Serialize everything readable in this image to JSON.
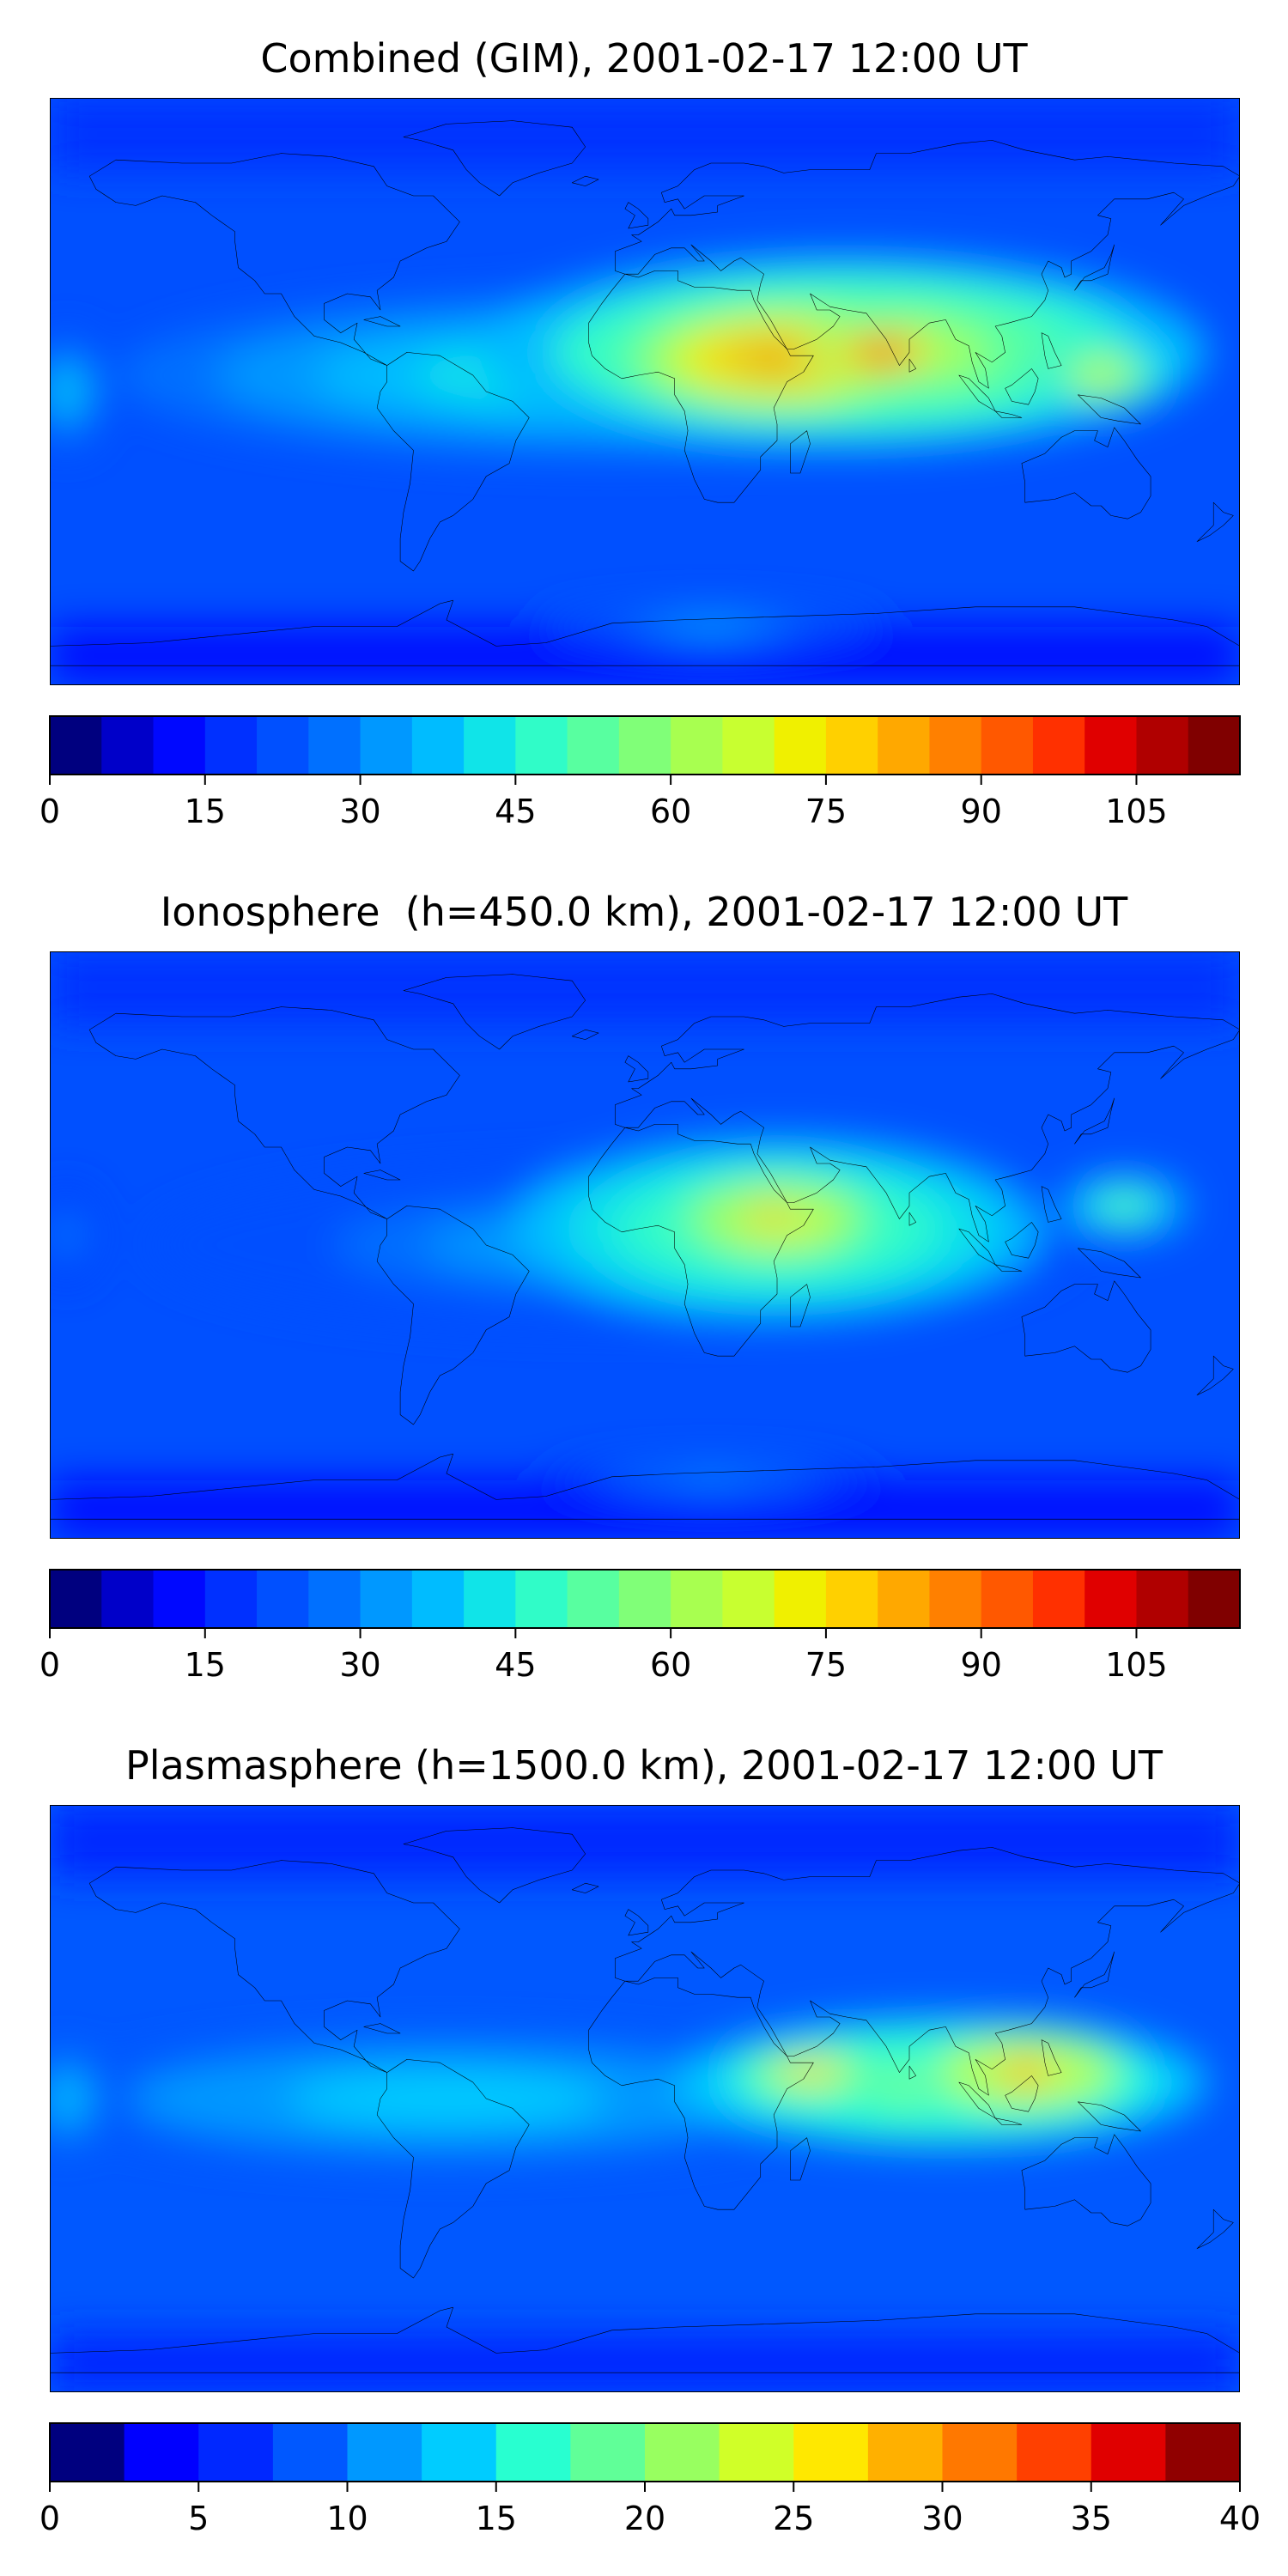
{
  "panels": [
    {
      "title": "Combined (GIM), 2001-02-17 12:00 UT",
      "colorbar": {
        "colors": [
          "#00007f",
          "#0000c9",
          "#0008ff",
          "#0030ff",
          "#0050ff",
          "#0070ff",
          "#0098ff",
          "#00bcff",
          "#10e4e8",
          "#30fcc8",
          "#58ffa0",
          "#80ff78",
          "#a8ff50",
          "#c8ff30",
          "#f0f000",
          "#ffd000",
          "#ffa800",
          "#ff8000",
          "#ff5800",
          "#ff3000",
          "#e00000",
          "#b00000",
          "#800000"
        ],
        "range": [
          0,
          115
        ],
        "ticks": [
          "0",
          "15",
          "30",
          "45",
          "60",
          "75",
          "90",
          "105"
        ]
      },
      "blobs": [
        {
          "lon": -10,
          "lat": 5,
          "rx": 150,
          "ry": 25,
          "level": 0.4
        },
        {
          "lon": 60,
          "lat": 12,
          "rx": 110,
          "ry": 30,
          "level": 0.6
        },
        {
          "lon": 40,
          "lat": 10,
          "rx": 50,
          "ry": 18,
          "level": 0.82
        },
        {
          "lon": 72,
          "lat": 12,
          "rx": 22,
          "ry": 9,
          "level": 0.9
        },
        {
          "lon": 38,
          "lat": 9,
          "rx": 12,
          "ry": 5,
          "level": 0.98
        },
        {
          "lon": 138,
          "lat": 5,
          "rx": 20,
          "ry": 10,
          "level": 0.62
        },
        {
          "lon": -175,
          "lat": 0,
          "rx": 12,
          "ry": 18,
          "level": 0.35
        },
        {
          "lon": 20,
          "lat": -72,
          "rx": 50,
          "ry": 6,
          "level": 0.3
        }
      ]
    },
    {
      "title": "Ionosphere  (h=450.0 km), 2001-02-17 12:00 UT",
      "colorbar": {
        "colors": [
          "#00007f",
          "#0000c9",
          "#0008ff",
          "#0030ff",
          "#0050ff",
          "#0070ff",
          "#0098ff",
          "#00bcff",
          "#10e4e8",
          "#30fcc8",
          "#58ffa0",
          "#80ff78",
          "#a8ff50",
          "#c8ff30",
          "#f0f000",
          "#ffd000",
          "#ffa800",
          "#ff8000",
          "#ff5800",
          "#ff3000",
          "#e00000",
          "#b00000",
          "#800000"
        ],
        "range": [
          0,
          115
        ],
        "ticks": [
          "0",
          "15",
          "30",
          "45",
          "60",
          "75",
          "90",
          "105"
        ]
      },
      "blobs": [
        {
          "lon": -10,
          "lat": 0,
          "rx": 140,
          "ry": 25,
          "level": 0.3
        },
        {
          "lon": 40,
          "lat": 5,
          "rx": 80,
          "ry": 28,
          "level": 0.55
        },
        {
          "lon": 40,
          "lat": 8,
          "rx": 35,
          "ry": 15,
          "level": 0.72
        },
        {
          "lon": 38,
          "lat": 10,
          "rx": 12,
          "ry": 5,
          "level": 0.82
        },
        {
          "lon": 145,
          "lat": 12,
          "rx": 20,
          "ry": 10,
          "level": 0.48
        },
        {
          "lon": -175,
          "lat": 3,
          "rx": 10,
          "ry": 15,
          "level": 0.25
        },
        {
          "lon": 20,
          "lat": -72,
          "rx": 50,
          "ry": 6,
          "level": 0.28
        }
      ]
    },
    {
      "title": "Plasmasphere (h=1500.0 km), 2001-02-17 12:00 UT",
      "colorbar": {
        "colors": [
          "#00007f",
          "#0000ff",
          "#0028ff",
          "#0058ff",
          "#0098ff",
          "#00ccff",
          "#28ffd0",
          "#60ff98",
          "#98ff60",
          "#d0ff28",
          "#ffe800",
          "#ffb000",
          "#ff7800",
          "#ff4000",
          "#e00000",
          "#900000"
        ],
        "range": [
          0,
          40
        ],
        "ticks": [
          "0",
          "5",
          "10",
          "15",
          "20",
          "25",
          "30",
          "35",
          "40"
        ]
      },
      "blobs": [
        {
          "lon": -60,
          "lat": 0,
          "rx": 120,
          "ry": 20,
          "level": 0.35
        },
        {
          "lon": 90,
          "lat": 5,
          "rx": 80,
          "ry": 20,
          "level": 0.55
        },
        {
          "lon": 50,
          "lat": 8,
          "rx": 25,
          "ry": 8,
          "level": 0.72
        },
        {
          "lon": 115,
          "lat": 8,
          "rx": 35,
          "ry": 14,
          "level": 0.75
        },
        {
          "lon": 115,
          "lat": 8,
          "rx": 15,
          "ry": 7,
          "level": 0.88
        },
        {
          "lon": -175,
          "lat": 0,
          "rx": 10,
          "ry": 15,
          "level": 0.35
        }
      ]
    }
  ]
}
